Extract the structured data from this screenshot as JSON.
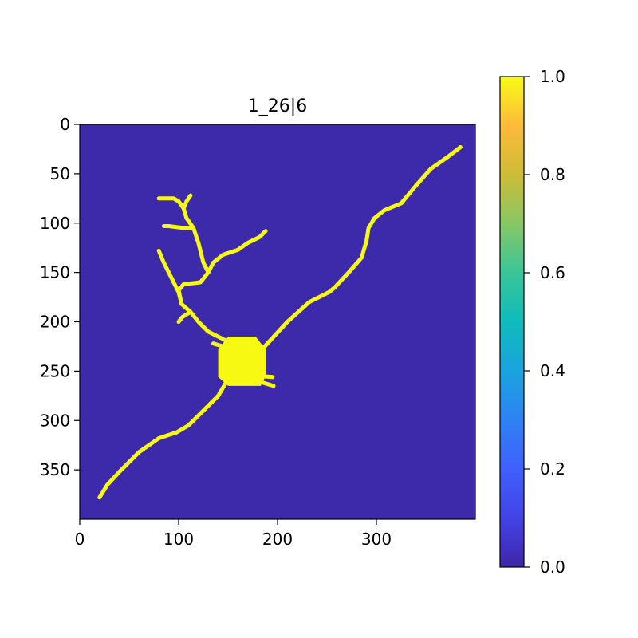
{
  "chart_data": {
    "type": "heatmap",
    "title": "1_26|6",
    "image_size": [
      400,
      400
    ],
    "xlim": [
      0,
      400
    ],
    "ylim": [
      400,
      0
    ],
    "x_ticks": [
      0,
      100,
      200,
      300
    ],
    "y_ticks": [
      0,
      50,
      100,
      150,
      200,
      250,
      300,
      350
    ],
    "colorbar": {
      "range": [
        0.0,
        1.0
      ],
      "ticks": [
        "0.0",
        "0.2",
        "0.4",
        "0.6",
        "0.8",
        "1.0"
      ]
    },
    "colors": {
      "background_value_color": "#3d2aab",
      "foreground_value_color": "#f8f913"
    },
    "values_present": [
      0.0,
      1.0
    ],
    "soma": {
      "center": [
        163,
        240
      ],
      "polygon": [
        [
          150,
          215
        ],
        [
          178,
          215
        ],
        [
          188,
          228
        ],
        [
          188,
          255
        ],
        [
          183,
          265
        ],
        [
          150,
          265
        ],
        [
          140,
          256
        ],
        [
          140,
          228
        ]
      ]
    },
    "branches": [
      {
        "points": [
          [
            175,
            238
          ],
          [
            210,
            200
          ],
          [
            232,
            180
          ],
          [
            252,
            170
          ],
          [
            258,
            165
          ],
          [
            272,
            150
          ],
          [
            285,
            135
          ],
          [
            290,
            118
          ],
          [
            292,
            105
          ],
          [
            298,
            95
          ],
          [
            308,
            87
          ],
          [
            325,
            80
          ],
          [
            340,
            62
          ],
          [
            355,
            45
          ],
          [
            372,
            33
          ],
          [
            385,
            23
          ]
        ]
      },
      {
        "points": [
          [
            150,
            258
          ],
          [
            140,
            275
          ],
          [
            125,
            290
          ],
          [
            110,
            305
          ],
          [
            98,
            312
          ],
          [
            80,
            318
          ],
          [
            60,
            332
          ],
          [
            42,
            350
          ],
          [
            28,
            365
          ],
          [
            20,
            378
          ]
        ]
      },
      {
        "points": [
          [
            150,
            220
          ],
          [
            130,
            210
          ],
          [
            120,
            200
          ],
          [
            112,
            190
          ],
          [
            103,
            182
          ],
          [
            100,
            168
          ],
          [
            105,
            162
          ],
          [
            122,
            160
          ],
          [
            130,
            150
          ],
          [
            135,
            140
          ],
          [
            145,
            132
          ],
          [
            160,
            127
          ],
          [
            170,
            120
          ],
          [
            182,
            114
          ],
          [
            188,
            108
          ]
        ]
      },
      {
        "points": [
          [
            130,
            150
          ],
          [
            125,
            140
          ],
          [
            120,
            120
          ],
          [
            115,
            105
          ],
          [
            105,
            105
          ],
          [
            90,
            103
          ],
          [
            85,
            103
          ]
        ]
      },
      {
        "points": [
          [
            115,
            105
          ],
          [
            108,
            95
          ],
          [
            105,
            85
          ],
          [
            100,
            78
          ],
          [
            95,
            75
          ],
          [
            90,
            75
          ],
          [
            80,
            75
          ]
        ]
      },
      {
        "points": [
          [
            105,
            85
          ],
          [
            108,
            78
          ],
          [
            112,
            72
          ]
        ]
      },
      {
        "points": [
          [
            103,
            182
          ],
          [
            100,
            170
          ],
          [
            95,
            160
          ],
          [
            90,
            150
          ],
          [
            85,
            140
          ],
          [
            80,
            128
          ]
        ]
      },
      {
        "points": [
          [
            112,
            190
          ],
          [
            104,
            195
          ],
          [
            100,
            200
          ]
        ]
      },
      {
        "points": [
          [
            183,
            255
          ],
          [
            195,
            256
          ]
        ]
      },
      {
        "points": [
          [
            180,
            260
          ],
          [
            196,
            265
          ]
        ]
      },
      {
        "points": [
          [
            145,
            225
          ],
          [
            135,
            222
          ]
        ]
      }
    ]
  }
}
